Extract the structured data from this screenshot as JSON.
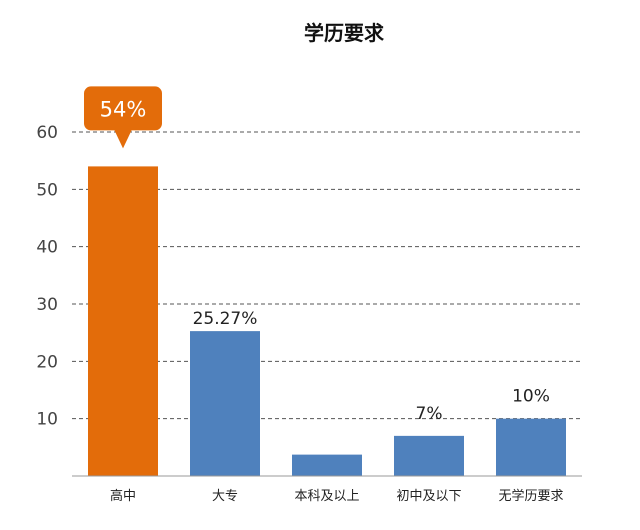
{
  "chart_data": {
    "type": "bar",
    "title": "学历要求",
    "categories": [
      "高中",
      "大专",
      "本科及以上",
      "初中及以下",
      "无学历要求"
    ],
    "values": [
      54,
      25.27,
      3.73,
      7,
      10
    ],
    "data_labels": [
      "54%",
      "25.27%",
      "",
      "7%",
      "10%"
    ],
    "highlight_index": 0,
    "y_ticks": [
      10,
      20,
      30,
      40,
      50,
      60
    ],
    "ylim": [
      0,
      60
    ],
    "grid": true,
    "colors": {
      "highlight": "#E36C0A",
      "bar": "#4F81BD",
      "grid": "#555555",
      "axis": "#999999"
    }
  }
}
